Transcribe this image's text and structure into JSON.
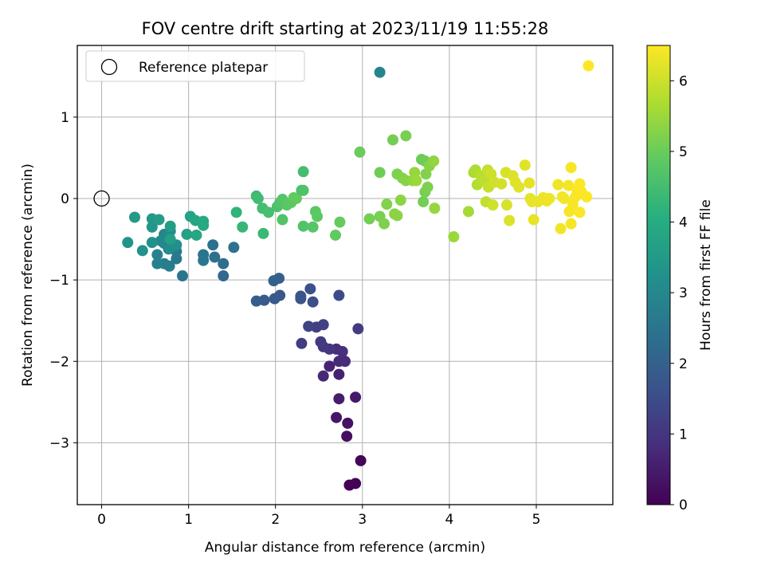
{
  "chart_data": {
    "type": "scatter",
    "title": "FOV centre drift starting at 2023/11/19 11:55:28",
    "xlabel": "Angular distance from reference (arcmin)",
    "ylabel": "Rotation from reference (arcmin)",
    "xlim": [
      -0.28,
      5.88
    ],
    "ylim": [
      -3.76,
      1.88
    ],
    "xticks": [
      0,
      1,
      2,
      3,
      4,
      5
    ],
    "yticks": [
      -3,
      -2,
      -1,
      0,
      1
    ],
    "xtick_labels": [
      "0",
      "1",
      "2",
      "3",
      "4",
      "5"
    ],
    "ytick_labels": [
      "−3",
      "−2",
      "−1",
      "0",
      "1"
    ],
    "grid": true,
    "colormap": "viridis",
    "colorbar": {
      "label": "Hours from first FF file",
      "range": [
        0,
        6.5
      ],
      "ticks": [
        0,
        1,
        2,
        3,
        4,
        5,
        6
      ],
      "tick_labels": [
        "0",
        "1",
        "2",
        "3",
        "4",
        "5",
        "6"
      ]
    },
    "legend": {
      "position": "top-left",
      "entries": [
        {
          "label": "Reference platepar",
          "marker": "open-circle",
          "x": 0,
          "y": 0
        }
      ]
    },
    "points": [
      [
        2.85,
        -3.52,
        0.02
      ],
      [
        2.92,
        -3.5,
        0.05
      ],
      [
        2.98,
        -3.22,
        0.1
      ],
      [
        2.82,
        -2.92,
        0.25
      ],
      [
        2.83,
        -2.76,
        0.3
      ],
      [
        2.7,
        -2.69,
        0.4
      ],
      [
        2.92,
        -2.44,
        0.45
      ],
      [
        2.73,
        -2.46,
        0.5
      ],
      [
        2.73,
        -2.16,
        0.6
      ],
      [
        2.62,
        -2.06,
        0.65
      ],
      [
        2.55,
        -2.18,
        0.7
      ],
      [
        2.73,
        -2.0,
        0.75
      ],
      [
        2.8,
        -2.0,
        0.8
      ],
      [
        2.7,
        -1.85,
        0.85
      ],
      [
        2.77,
        -1.88,
        0.9
      ],
      [
        2.62,
        -1.85,
        1.0
      ],
      [
        2.55,
        -1.82,
        1.05
      ],
      [
        2.52,
        -1.76,
        1.1
      ],
      [
        2.3,
        -1.78,
        1.15
      ],
      [
        2.47,
        -1.58,
        1.2
      ],
      [
        2.55,
        -1.55,
        1.25
      ],
      [
        2.38,
        -1.57,
        1.3
      ],
      [
        2.95,
        -1.6,
        1.15
      ],
      [
        2.73,
        -1.19,
        1.5
      ],
      [
        2.43,
        -1.27,
        1.55
      ],
      [
        2.4,
        -1.11,
        1.6
      ],
      [
        2.29,
        -1.2,
        1.65
      ],
      [
        2.29,
        -1.23,
        1.7
      ],
      [
        2.05,
        -1.19,
        1.75
      ],
      [
        1.99,
        -1.23,
        1.8
      ],
      [
        1.87,
        -1.25,
        1.85
      ],
      [
        1.78,
        -1.26,
        1.9
      ],
      [
        2.04,
        -0.98,
        1.95
      ],
      [
        1.98,
        -1.01,
        2.0
      ],
      [
        1.4,
        -0.95,
        2.2
      ],
      [
        0.93,
        -0.95,
        2.5
      ],
      [
        1.4,
        -0.8,
        2.3
      ],
      [
        1.3,
        -0.72,
        2.35
      ],
      [
        1.28,
        -0.57,
        2.4
      ],
      [
        1.52,
        -0.6,
        2.45
      ],
      [
        1.17,
        -0.69,
        2.5
      ],
      [
        1.17,
        -0.76,
        2.55
      ],
      [
        0.86,
        -0.74,
        2.6
      ],
      [
        0.86,
        -0.65,
        2.65
      ],
      [
        0.78,
        -0.83,
        2.7
      ],
      [
        0.72,
        -0.8,
        2.75
      ],
      [
        0.64,
        -0.8,
        2.8
      ],
      [
        0.64,
        -0.69,
        2.85
      ],
      [
        0.72,
        -0.55,
        2.9
      ],
      [
        0.72,
        -0.44,
        2.95
      ],
      [
        0.77,
        -0.62,
        3.0
      ],
      [
        0.68,
        -0.52,
        3.05
      ],
      [
        0.79,
        -0.4,
        3.1
      ],
      [
        0.79,
        -0.61,
        3.15
      ],
      [
        0.86,
        -0.57,
        3.2
      ],
      [
        0.58,
        -0.54,
        3.25
      ],
      [
        0.47,
        -0.64,
        3.3
      ],
      [
        0.3,
        -0.54,
        3.35
      ],
      [
        0.58,
        -0.35,
        3.4
      ],
      [
        0.58,
        -0.25,
        3.45
      ],
      [
        0.38,
        -0.23,
        3.5
      ],
      [
        0.66,
        -0.26,
        3.55
      ],
      [
        0.79,
        -0.34,
        3.6
      ],
      [
        0.79,
        -0.5,
        3.65
      ],
      [
        0.98,
        -0.44,
        3.7
      ],
      [
        1.02,
        -0.22,
        3.75
      ],
      [
        1.08,
        -0.27,
        3.8
      ],
      [
        1.09,
        -0.45,
        3.85
      ],
      [
        1.17,
        -0.33,
        3.9
      ],
      [
        1.17,
        -0.28,
        3.95
      ],
      [
        3.2,
        1.55,
        2.9
      ],
      [
        2.32,
        0.33,
        4.5
      ],
      [
        1.55,
        -0.17,
        4.2
      ],
      [
        1.62,
        -0.35,
        4.3
      ],
      [
        1.86,
        -0.43,
        4.35
      ],
      [
        1.78,
        0.03,
        4.4
      ],
      [
        1.8,
        0.0,
        4.45
      ],
      [
        1.85,
        -0.12,
        4.5
      ],
      [
        1.92,
        -0.17,
        4.55
      ],
      [
        2.02,
        -0.1,
        4.6
      ],
      [
        2.05,
        -0.05,
        4.65
      ],
      [
        2.08,
        -0.26,
        4.7
      ],
      [
        2.08,
        -0.01,
        4.75
      ],
      [
        2.13,
        -0.08,
        4.8
      ],
      [
        2.18,
        -0.05,
        4.85
      ],
      [
        2.21,
        0.01,
        4.9
      ],
      [
        2.24,
        0.0,
        4.92
      ],
      [
        2.3,
        0.1,
        4.6
      ],
      [
        2.32,
        0.1,
        4.65
      ],
      [
        2.32,
        -0.34,
        4.7
      ],
      [
        2.43,
        -0.35,
        4.75
      ],
      [
        2.46,
        -0.16,
        4.8
      ],
      [
        2.48,
        -0.22,
        4.85
      ],
      [
        2.69,
        -0.45,
        4.9
      ],
      [
        2.74,
        -0.29,
        4.95
      ],
      [
        2.97,
        0.57,
        5.0
      ],
      [
        3.2,
        0.32,
        5.05
      ],
      [
        3.08,
        -0.25,
        5.1
      ],
      [
        3.2,
        -0.22,
        5.15
      ],
      [
        3.25,
        -0.31,
        5.2
      ],
      [
        3.28,
        -0.07,
        5.25
      ],
      [
        3.37,
        -0.19,
        5.3
      ],
      [
        3.4,
        -0.21,
        5.35
      ],
      [
        3.35,
        0.72,
        5.1
      ],
      [
        3.5,
        0.77,
        5.15
      ],
      [
        3.4,
        0.3,
        5.2
      ],
      [
        3.46,
        0.25,
        5.25
      ],
      [
        3.5,
        0.22,
        5.3
      ],
      [
        3.44,
        -0.02,
        5.35
      ],
      [
        3.58,
        0.22,
        5.4
      ],
      [
        3.6,
        0.32,
        5.45
      ],
      [
        3.62,
        0.22,
        5.5
      ],
      [
        3.68,
        0.48,
        5.0
      ],
      [
        3.72,
        0.46,
        5.05
      ],
      [
        3.7,
        -0.04,
        5.1
      ],
      [
        3.72,
        0.08,
        5.15
      ],
      [
        3.75,
        0.14,
        5.2
      ],
      [
        3.73,
        0.3,
        5.25
      ],
      [
        3.77,
        0.4,
        5.3
      ],
      [
        3.82,
        0.46,
        5.4
      ],
      [
        3.83,
        -0.12,
        5.45
      ],
      [
        4.05,
        -0.47,
        5.5
      ],
      [
        4.22,
        -0.16,
        5.6
      ],
      [
        4.28,
        0.32,
        5.65
      ],
      [
        4.3,
        0.35,
        5.7
      ],
      [
        4.32,
        0.17,
        5.75
      ],
      [
        4.36,
        0.28,
        5.8
      ],
      [
        4.4,
        0.22,
        5.85
      ],
      [
        4.42,
        -0.04,
        5.9
      ],
      [
        4.44,
        0.35,
        5.92
      ],
      [
        4.45,
        0.14,
        5.95
      ],
      [
        4.48,
        0.3,
        6.0
      ],
      [
        4.5,
        -0.08,
        6.02
      ],
      [
        4.52,
        0.2,
        6.05
      ],
      [
        4.6,
        0.18,
        6.08
      ],
      [
        4.65,
        0.32,
        6.1
      ],
      [
        4.66,
        -0.08,
        6.12
      ],
      [
        4.69,
        -0.27,
        6.14
      ],
      [
        4.73,
        0.28,
        6.16
      ],
      [
        4.76,
        0.2,
        6.18
      ],
      [
        4.8,
        0.14,
        6.2
      ],
      [
        4.87,
        0.41,
        6.22
      ],
      [
        4.92,
        0.19,
        6.24
      ],
      [
        4.93,
        0.0,
        6.25
      ],
      [
        4.95,
        -0.04,
        6.27
      ],
      [
        4.97,
        -0.26,
        6.28
      ],
      [
        5.02,
        -0.04,
        6.3
      ],
      [
        5.08,
        0.01,
        6.32
      ],
      [
        5.12,
        -0.03,
        6.33
      ],
      [
        5.15,
        0.0,
        6.35
      ],
      [
        5.25,
        0.17,
        6.36
      ],
      [
        5.28,
        -0.37,
        6.38
      ],
      [
        5.3,
        0.02,
        6.39
      ],
      [
        5.32,
        0.0,
        6.4
      ],
      [
        5.37,
        0.16,
        6.41
      ],
      [
        5.38,
        -0.16,
        6.42
      ],
      [
        5.4,
        0.38,
        6.43
      ],
      [
        5.4,
        -0.31,
        6.44
      ],
      [
        5.42,
        -0.07,
        6.45
      ],
      [
        5.45,
        0.02,
        6.46
      ],
      [
        5.47,
        0.1,
        6.46
      ],
      [
        5.5,
        0.18,
        6.47
      ],
      [
        5.5,
        -0.17,
        6.47
      ],
      [
        5.52,
        0.08,
        6.48
      ],
      [
        5.58,
        0.02,
        6.49
      ],
      [
        5.6,
        1.63,
        6.5
      ]
    ]
  }
}
